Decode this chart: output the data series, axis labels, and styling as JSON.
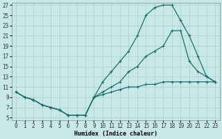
{
  "xlabel": "Humidex (Indice chaleur)",
  "bg_color": "#c8e8e8",
  "grid_color": "#a8cccc",
  "line_color": "#1a6b6b",
  "xlim": [
    0,
    23
  ],
  "ylim": [
    5,
    27
  ],
  "xticks": [
    0,
    1,
    2,
    3,
    4,
    5,
    6,
    7,
    8,
    9,
    10,
    11,
    12,
    13,
    14,
    15,
    16,
    17,
    18,
    19,
    20,
    21,
    22,
    23
  ],
  "yticks": [
    5,
    7,
    9,
    11,
    13,
    15,
    17,
    19,
    21,
    23,
    25,
    27
  ],
  "series1_x": [
    0,
    1,
    2,
    3,
    4,
    5,
    6,
    7,
    8,
    9,
    10,
    11,
    12,
    13,
    14,
    15,
    16,
    17,
    18,
    19,
    20,
    21,
    22,
    23
  ],
  "series1_y": [
    10,
    9,
    8.5,
    7.5,
    7,
    6.5,
    5.5,
    5.5,
    5.5,
    9,
    9.5,
    10,
    10.5,
    11,
    11,
    11.5,
    11.5,
    12,
    12,
    12,
    12,
    12,
    12,
    12
  ],
  "series2_x": [
    0,
    1,
    2,
    3,
    4,
    5,
    6,
    7,
    8,
    9,
    10,
    11,
    12,
    13,
    14,
    15,
    16,
    17,
    18,
    19,
    20,
    21,
    22,
    23
  ],
  "series2_y": [
    10,
    9,
    8.5,
    7.5,
    7,
    6.5,
    5.5,
    5.5,
    5.5,
    9,
    12,
    14,
    16,
    18,
    21,
    25,
    26.5,
    27,
    27,
    24,
    21,
    17,
    13,
    12
  ],
  "series3_x": [
    0,
    1,
    2,
    3,
    4,
    5,
    6,
    7,
    8,
    9,
    10,
    11,
    12,
    13,
    14,
    15,
    16,
    17,
    18,
    19,
    20,
    21,
    22,
    23
  ],
  "series3_y": [
    10,
    9,
    8.5,
    7.5,
    7,
    6.5,
    5.5,
    5.5,
    5.5,
    9,
    10,
    11,
    12,
    14,
    15,
    17,
    18,
    19,
    22,
    22,
    16,
    14,
    13,
    12
  ]
}
